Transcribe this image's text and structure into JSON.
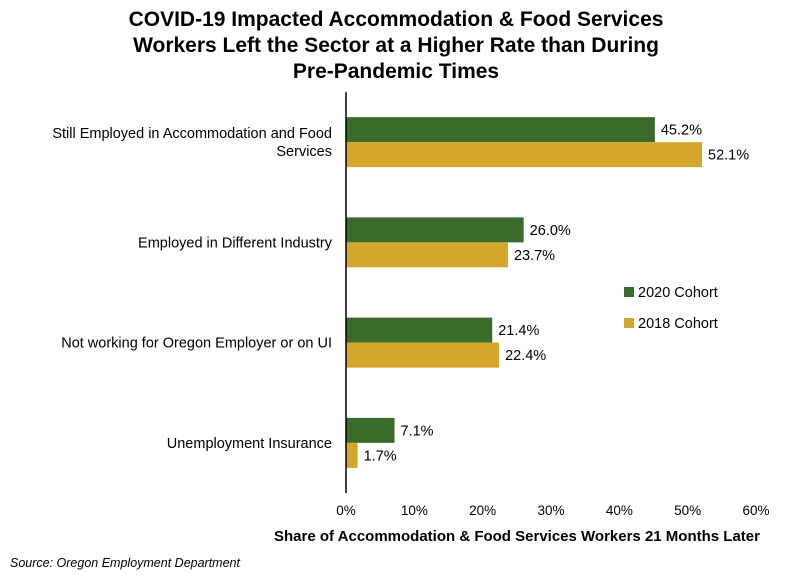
{
  "chart_data": {
    "type": "bar",
    "orientation": "horizontal",
    "title_lines": [
      "COVID-19 Impacted Accommodation & Food Services",
      "Workers Left the Sector at a Higher Rate than During",
      "Pre-Pandemic Times"
    ],
    "categories": [
      [
        "Still Employed in Accommodation and Food",
        "Services"
      ],
      [
        "Employed in Different Industry"
      ],
      [
        "Not working for Oregon Employer or on UI"
      ],
      [
        "Unemployment Insurance"
      ]
    ],
    "series": [
      {
        "name": "2020 Cohort",
        "color": "#3a6b2a",
        "values": [
          45.2,
          26.0,
          21.4,
          7.1
        ],
        "labels": [
          "45.2%",
          "26.0%",
          "21.4%",
          "7.1%"
        ]
      },
      {
        "name": "2018 Cohort",
        "color": "#d4a72c",
        "values": [
          52.1,
          23.7,
          22.4,
          1.7
        ],
        "labels": [
          "52.1%",
          "23.7%",
          "22.4%",
          "1.7%"
        ]
      }
    ],
    "xlim": [
      0,
      60
    ],
    "xticks": [
      0,
      10,
      20,
      30,
      40,
      50,
      60
    ],
    "xtick_labels": [
      "0%",
      "10%",
      "20%",
      "30%",
      "40%",
      "50%",
      "60%"
    ],
    "xlabel": "Share of Accommodation & Food Services Workers 21 Months Later",
    "ylabel": "",
    "grid": false,
    "legend_position": "right"
  },
  "source": "Source: Oregon Employment Department"
}
